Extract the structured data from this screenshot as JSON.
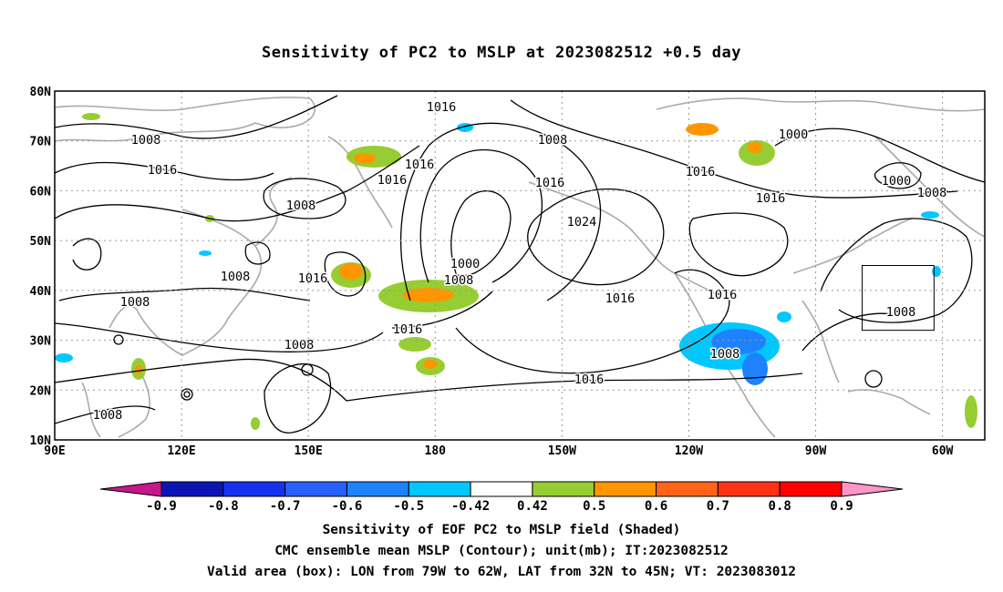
{
  "title": "Sensitivity of PC2 to MSLP at 2023082512 +0.5 day",
  "map": {
    "lat_labels": [
      "80N",
      "70N",
      "60N",
      "50N",
      "40N",
      "30N",
      "20N",
      "10N"
    ],
    "lon_labels": [
      "90E",
      "120E",
      "150E",
      "180",
      "150W",
      "120W",
      "90W",
      "60W"
    ],
    "contour_labels": [
      "1016",
      "1008",
      "1016",
      "1008",
      "1016",
      "1016",
      "1008",
      "1008",
      "1000",
      "1000",
      "1008",
      "1016",
      "1016",
      "1008",
      "1024",
      "1000",
      "1016",
      "1008",
      "1016",
      "1016",
      "1016",
      "1008",
      "1008",
      "1016",
      "1016",
      "1008",
      "1008"
    ],
    "valid_box": {
      "lon_min": -79,
      "lon_max": -62,
      "lat_min": 32,
      "lat_max": 45
    }
  },
  "colorbar": {
    "ticks": [
      "-0.9",
      "-0.8",
      "-0.7",
      "-0.6",
      "-0.5",
      "-0.42",
      "0.42",
      "0.5",
      "0.6",
      "0.7",
      "0.8",
      "0.9"
    ],
    "colors": [
      "#c8168c",
      "#0a14b4",
      "#1432f0",
      "#2860ff",
      "#1e82ff",
      "#00c8ff",
      "#ffffff",
      "#96cd32",
      "#ff9600",
      "#ff6418",
      "#ff3214",
      "#ff0000",
      "#ff96c8"
    ]
  },
  "captions": {
    "line1": "Sensitivity of EOF PC2 to MSLP field (Shaded)",
    "line2": "CMC ensemble mean MSLP (Contour); unit(mb); IT:2023082512",
    "line3": "Valid area (box): LON from 79W to 62W, LAT from 32N to 45N; VT: 2023083012"
  }
}
